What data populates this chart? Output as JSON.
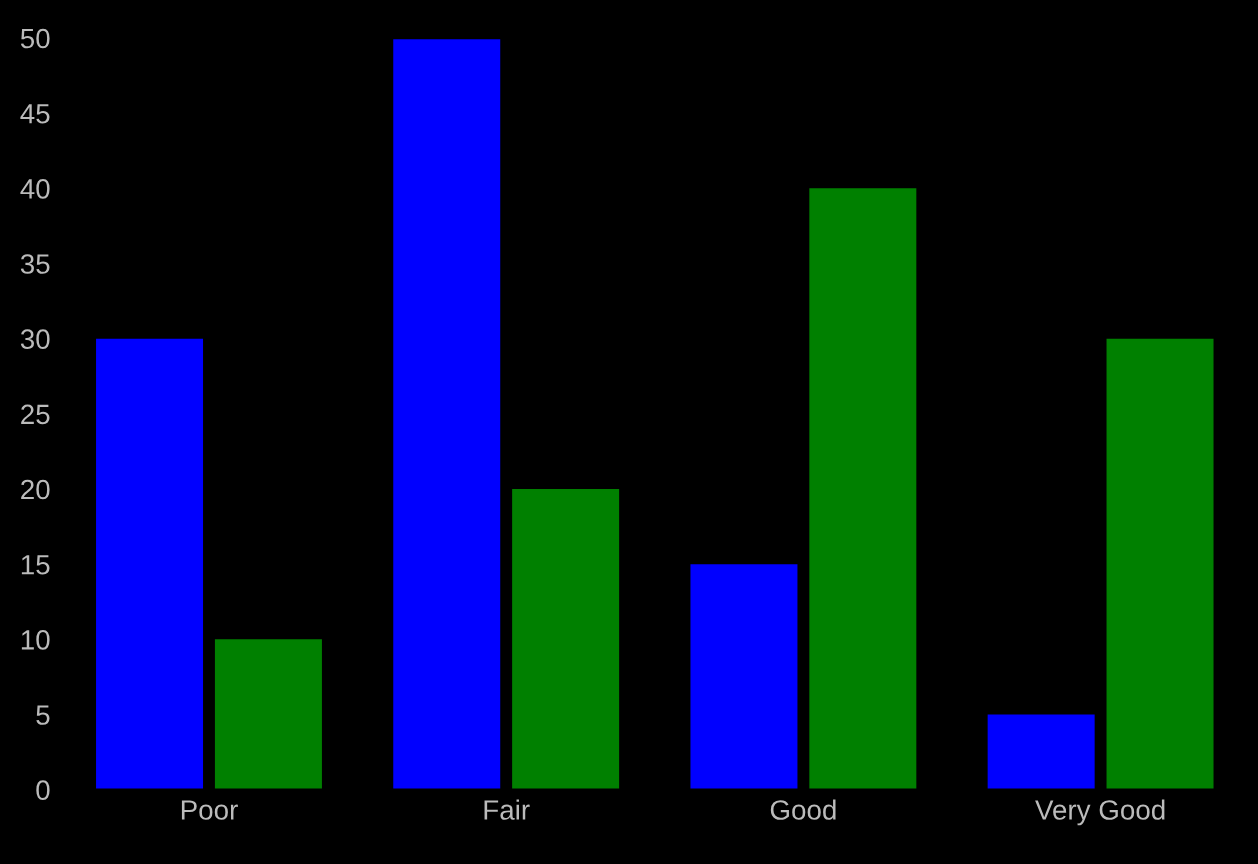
{
  "chart_data": {
    "type": "bar",
    "categories": [
      "Poor",
      "Fair",
      "Good",
      "Very Good"
    ],
    "series": [
      {
        "color": "#0000ff",
        "values": [
          30,
          50,
          15,
          5
        ]
      },
      {
        "color": "#008000",
        "values": [
          10,
          20,
          40,
          30
        ]
      }
    ],
    "ylim": [
      0,
      50
    ],
    "yticks": [
      0,
      5,
      10,
      15,
      20,
      25,
      30,
      35,
      40,
      45,
      50
    ],
    "grid": false,
    "legend": false
  }
}
